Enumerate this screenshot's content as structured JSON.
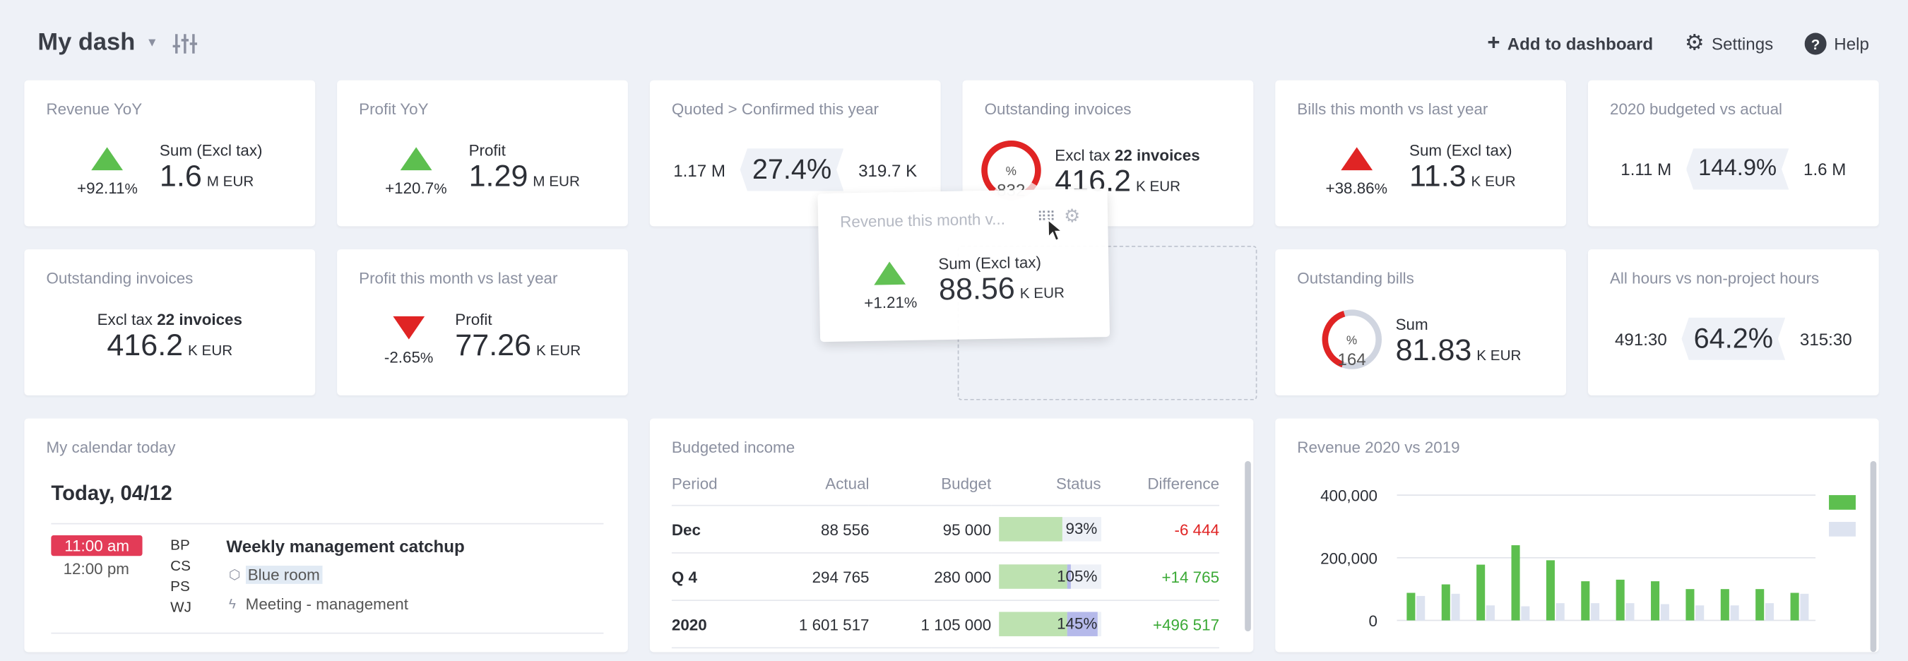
{
  "header": {
    "title": "My dash",
    "add_label": "Add to dashboard",
    "settings_label": "Settings",
    "help_label": "Help"
  },
  "widgets": {
    "revenue_yoy": {
      "title": "Revenue YoY",
      "trend": "+92.11",
      "trend_unit": "%",
      "label": "Sum (Excl tax)",
      "value": "1.6",
      "unit": "M  EUR"
    },
    "profit_yoy": {
      "title": "Profit YoY",
      "trend": "+120.7",
      "trend_unit": "%",
      "label": "Profit",
      "value": "1.29",
      "unit": "M  EUR"
    },
    "quoted": {
      "title": "Quoted > Confirmed this year",
      "left": "1.17 M",
      "pct": "27.4%",
      "right": "319.7 K"
    },
    "outstanding_invoices_1": {
      "title": "Outstanding invoices",
      "donut": "832",
      "donut_unit": "%",
      "label_pre": "Excl tax ",
      "label_bold": "22 invoices",
      "value": "416.2",
      "unit": "K  EUR"
    },
    "bills_month": {
      "title": "Bills this month vs last year",
      "trend": "+38.86",
      "trend_unit": "%",
      "label": "Sum (Excl tax)",
      "value": "11.3",
      "unit": "K  EUR"
    },
    "budget_2020": {
      "title": "2020 budgeted vs actual",
      "left": "1.11 M",
      "pct": "144.9%",
      "right": "1.6 M"
    },
    "outstanding_invoices_2": {
      "title": "Outstanding invoices",
      "label_pre": "Excl tax ",
      "label_bold": "22 invoices",
      "value": "416.2",
      "unit": "K  EUR"
    },
    "profit_month": {
      "title": "Profit this month vs last year",
      "trend": "-2.65",
      "trend_unit": "%",
      "label": "Profit",
      "value": "77.26",
      "unit": "K  EUR"
    },
    "revenue_month_drag": {
      "title": "Revenue this month v...",
      "trend": "+1.21",
      "trend_unit": "%",
      "label": "Sum (Excl tax)",
      "value": "88.56",
      "unit": "K  EUR"
    },
    "outstanding_bills": {
      "title": "Outstanding bills",
      "donut": "164",
      "donut_unit": "%",
      "label": "Sum",
      "value": "81.83",
      "unit": "K  EUR"
    },
    "hours": {
      "title": "All hours vs non-project hours",
      "left": "491:30",
      "pct": "64.2%",
      "right": "315:30"
    }
  },
  "calendar": {
    "title": "My calendar today",
    "date": "Today, 04/12",
    "start": "11:00 am",
    "end": "12:00 pm",
    "initials": [
      "BP",
      "CS",
      "PS",
      "WJ"
    ],
    "event_title": "Weekly management catchup",
    "room": "Blue room",
    "type": "Meeting - management"
  },
  "budget": {
    "title": "Budgeted income",
    "columns": [
      "Period",
      "Actual",
      "Budget",
      "Status",
      "Difference"
    ],
    "rows": [
      {
        "period": "Dec",
        "actual": "88 556",
        "budget": "95 000",
        "status": "93%",
        "status_value": 0.93,
        "diff": "-6 444"
      },
      {
        "period": "Q 4",
        "actual": "294 765",
        "budget": "280 000",
        "status": "105%",
        "status_value": 1.05,
        "diff": "+14 765"
      },
      {
        "period": "2020",
        "actual": "1 601 517",
        "budget": "1 105 000",
        "status": "145%",
        "status_value": 1.45,
        "diff": "+496 517"
      }
    ]
  },
  "colors": {
    "accent_green": "#5dbf4f",
    "red": "#e02424",
    "badge": "#e33b57",
    "compare_bar": "#dde3f0"
  },
  "chart_data": {
    "type": "bar",
    "title": "Revenue 2020 vs 2019",
    "yticks": [
      "400,000",
      "200,000",
      "0"
    ],
    "ylim": [
      0,
      400000
    ],
    "series": [
      {
        "values": [
          88000,
          115000,
          178000,
          240000,
          192000,
          125000,
          130000,
          125000,
          100000,
          100000,
          100000,
          88000
        ]
      },
      {
        "values": [
          78000,
          85000,
          48000,
          45000,
          55000,
          55000,
          55000,
          52000,
          48000,
          48000,
          55000,
          85000
        ]
      }
    ],
    "legend_position": "right"
  }
}
